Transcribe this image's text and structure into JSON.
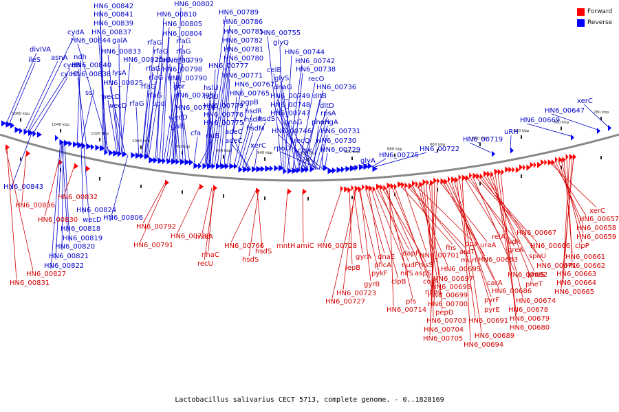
{
  "legend": {
    "forward_label": "Forward",
    "reverse_label": "Reverse",
    "forward_color": "#ff0000",
    "reverse_color": "#0000ff"
  },
  "footer": "Lactobacillus salivarius CECT 5713, complete genome. - 0..1828169",
  "ticks": [
    "1060 kbp",
    "1040 kbp",
    "1020 kbp",
    "1000 kbp",
    "980 kbp",
    "960 kbp",
    "940 kbp",
    "920 kbp",
    "900 kbp",
    "880 kbp",
    "860 kbp",
    "840 kbp",
    "820 kbp",
    "800 kbp",
    "780 kbp"
  ],
  "reverse_labels": [
    "HN6_00842",
    "HN6_00841",
    "HN6_00839",
    "HN6_00837",
    "HN6_00844",
    "HN6_00840",
    "HN6_00838",
    "cydA",
    "cydB",
    "cydC",
    "ndh",
    "galA",
    "HN6_00833",
    "HN6_00826",
    "lysA",
    "HN6_00825",
    "divIVA",
    "ileS",
    "asnA",
    "ssl",
    "wecD",
    "wecD",
    "HN6_00810",
    "HN6_00805",
    "HN6_00804",
    "rfaG",
    "rfaG",
    "rfaG",
    "rfaG",
    "rfaG",
    "rfaG",
    "rfaG",
    "rfaG",
    "rfaG",
    "rfaG",
    "rfaG",
    "HN6_00799",
    "HN6_00798",
    "HN6_00790",
    "gor",
    "HN6_00795",
    "HN6_00796",
    "ugd",
    "wecD",
    "galE",
    "HN6_00802",
    "HN6_00789",
    "HN6_00786",
    "HN6_00785",
    "HN6_00782",
    "HN6_00781",
    "HN6_00780",
    "HN6_00777",
    "hslU",
    "hslU",
    "HN6_00779",
    "HN6_00776",
    "HN6_00775",
    "cfa",
    "rluB",
    "HN6_00771",
    "HN6_00767",
    "HN6_00765",
    "pgpB",
    "hsdR",
    "hsdR",
    "hsdM",
    "hsdS",
    "adeC",
    "adeC",
    "xerC",
    "HN6_00755",
    "glyQ",
    "HN6_00744",
    "HN6_00742",
    "celB",
    "HN6_00738",
    "glyS",
    "recO",
    "dnaG",
    "HN6_00736",
    "HN6_00749",
    "dltB",
    "HN6_00748",
    "dltD",
    "HN6_00747",
    "rpsA",
    "dnaG",
    "phoH",
    "engA",
    "HN6_00746",
    "recQ",
    "HN6_00731",
    "rpoD",
    "HN6_00730",
    "cmk",
    "HN6_00729",
    "glyA",
    "HN6_00725",
    "HN6_00722",
    "HN6_00719",
    "uRH",
    "HN6_00669",
    "HN6_00647",
    "xerC",
    "HN6_00843",
    "HN6_00824",
    "wecD",
    "HN6_00818",
    "HN6_00819",
    "HN6_00820",
    "HN6_00821",
    "HN6_00822",
    "HN6_00806"
  ],
  "forward_labels": [
    "HN6_00832",
    "HN6_00836",
    "HN6_00830",
    "HN6_00827",
    "HN6_00831",
    "HN6_00792",
    "HN6_00791",
    "HN6_00788",
    "mrcA",
    "nhaC",
    "recU",
    "HN6_00766",
    "hsdS",
    "hsdS",
    "mntH",
    "amiC",
    "HN6_00728",
    "lepB",
    "gyrA",
    "HN6_00723",
    "HN6_00727",
    "pykF",
    "gyrB",
    "dnaE",
    "pflcA",
    "clpB",
    "nifS",
    "dapF",
    "nudF",
    "hisS",
    "aspS",
    "pfs",
    "HN6_00714",
    "corA",
    "nhaC",
    "fhs",
    "HN6_00701",
    "araT",
    "murI",
    "HN6_00695",
    "ppa",
    "HN6_00697",
    "HN6_00698",
    "HN6_00699",
    "HN6_00700",
    "pepD",
    "HN6_00703",
    "HN6_00704",
    "HN6_00705",
    "uraA",
    "HN6_00683",
    "carA",
    "HN6_00686",
    "pyrF",
    "pyrE",
    "HN6_00691",
    "HN6_00689",
    "HN6_00694",
    "relA",
    "udk",
    "greA",
    "HN6_00682",
    "HN6_00667",
    "HN6_00666",
    "spoU",
    "HN6_00671",
    "pheS",
    "pheT",
    "HN6_00674",
    "HN6_00678",
    "HN6_00679",
    "HN6_00680",
    "xerC",
    "HN6_00657",
    "HN6_00658",
    "HN6_00659",
    "clpP",
    "HN6_00661",
    "HN6_00662",
    "HN6_00663",
    "HN6_00664",
    "HN6_00665"
  ]
}
